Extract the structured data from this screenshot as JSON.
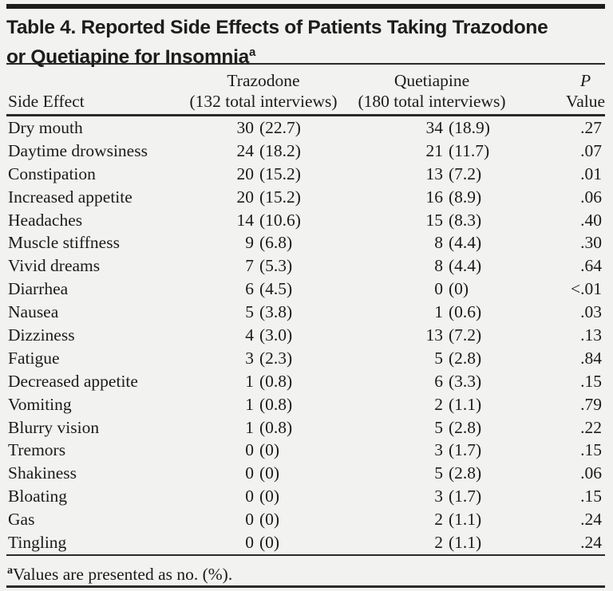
{
  "colors": {
    "background": "#f2f2f0",
    "text": "#1b1b1b",
    "rule": "#2a2a2a"
  },
  "title": {
    "line1": "Table 4. Reported Side Effects of Patients Taking Trazodone",
    "line2": "or Quetiapine for Insomnia",
    "superscript": "a"
  },
  "table": {
    "header": {
      "col1": "Side Effect",
      "col2_line1": "Trazodone",
      "col2_line2": "(132 total interviews)",
      "col3_line1": "Quetiapine",
      "col3_line2": "(180 total interviews)",
      "col4_line1": "P",
      "col4_line2": "Value"
    },
    "rows": [
      {
        "effect": "Dry mouth",
        "trazodone_n": "30",
        "trazodone_pct": "(22.7)",
        "quetiapine_n": "34",
        "quetiapine_pct": "(18.9)",
        "p": ".27"
      },
      {
        "effect": "Daytime drowsiness",
        "trazodone_n": "24",
        "trazodone_pct": "(18.2)",
        "quetiapine_n": "21",
        "quetiapine_pct": "(11.7)",
        "p": ".07"
      },
      {
        "effect": "Constipation",
        "trazodone_n": "20",
        "trazodone_pct": "(15.2)",
        "quetiapine_n": "13",
        "quetiapine_pct": "(7.2)",
        "p": ".01"
      },
      {
        "effect": "Increased appetite",
        "trazodone_n": "20",
        "trazodone_pct": "(15.2)",
        "quetiapine_n": "16",
        "quetiapine_pct": "(8.9)",
        "p": ".06"
      },
      {
        "effect": "Headaches",
        "trazodone_n": "14",
        "trazodone_pct": "(10.6)",
        "quetiapine_n": "15",
        "quetiapine_pct": "(8.3)",
        "p": ".40"
      },
      {
        "effect": "Muscle stiffness",
        "trazodone_n": "9",
        "trazodone_pct": "(6.8)",
        "quetiapine_n": "8",
        "quetiapine_pct": "(4.4)",
        "p": ".30"
      },
      {
        "effect": "Vivid dreams",
        "trazodone_n": "7",
        "trazodone_pct": "(5.3)",
        "quetiapine_n": "8",
        "quetiapine_pct": "(4.4)",
        "p": ".64"
      },
      {
        "effect": "Diarrhea",
        "trazodone_n": "6",
        "trazodone_pct": "(4.5)",
        "quetiapine_n": "0",
        "quetiapine_pct": "(0)",
        "p": "<.01"
      },
      {
        "effect": "Nausea",
        "trazodone_n": "5",
        "trazodone_pct": "(3.8)",
        "quetiapine_n": "1",
        "quetiapine_pct": "(0.6)",
        "p": ".03"
      },
      {
        "effect": "Dizziness",
        "trazodone_n": "4",
        "trazodone_pct": "(3.0)",
        "quetiapine_n": "13",
        "quetiapine_pct": "(7.2)",
        "p": ".13"
      },
      {
        "effect": "Fatigue",
        "trazodone_n": "3",
        "trazodone_pct": "(2.3)",
        "quetiapine_n": "5",
        "quetiapine_pct": "(2.8)",
        "p": ".84"
      },
      {
        "effect": "Decreased appetite",
        "trazodone_n": "1",
        "trazodone_pct": "(0.8)",
        "quetiapine_n": "6",
        "quetiapine_pct": "(3.3)",
        "p": ".15"
      },
      {
        "effect": "Vomiting",
        "trazodone_n": "1",
        "trazodone_pct": "(0.8)",
        "quetiapine_n": "2",
        "quetiapine_pct": "(1.1)",
        "p": ".79"
      },
      {
        "effect": "Blurry vision",
        "trazodone_n": "1",
        "trazodone_pct": "(0.8)",
        "quetiapine_n": "5",
        "quetiapine_pct": "(2.8)",
        "p": ".22"
      },
      {
        "effect": "Tremors",
        "trazodone_n": "0",
        "trazodone_pct": "(0)",
        "quetiapine_n": "3",
        "quetiapine_pct": "(1.7)",
        "p": ".15"
      },
      {
        "effect": "Shakiness",
        "trazodone_n": "0",
        "trazodone_pct": "(0)",
        "quetiapine_n": "5",
        "quetiapine_pct": "(2.8)",
        "p": ".06"
      },
      {
        "effect": "Bloating",
        "trazodone_n": "0",
        "trazodone_pct": "(0)",
        "quetiapine_n": "3",
        "quetiapine_pct": "(1.7)",
        "p": ".15"
      },
      {
        "effect": "Gas",
        "trazodone_n": "0",
        "trazodone_pct": "(0)",
        "quetiapine_n": "2",
        "quetiapine_pct": "(1.1)",
        "p": ".24"
      },
      {
        "effect": "Tingling",
        "trazodone_n": "0",
        "trazodone_pct": "(0)",
        "quetiapine_n": "2",
        "quetiapine_pct": "(1.1)",
        "p": ".24"
      }
    ]
  },
  "footnote": {
    "superscript": "a",
    "text": "Values are presented as no. (%)."
  }
}
